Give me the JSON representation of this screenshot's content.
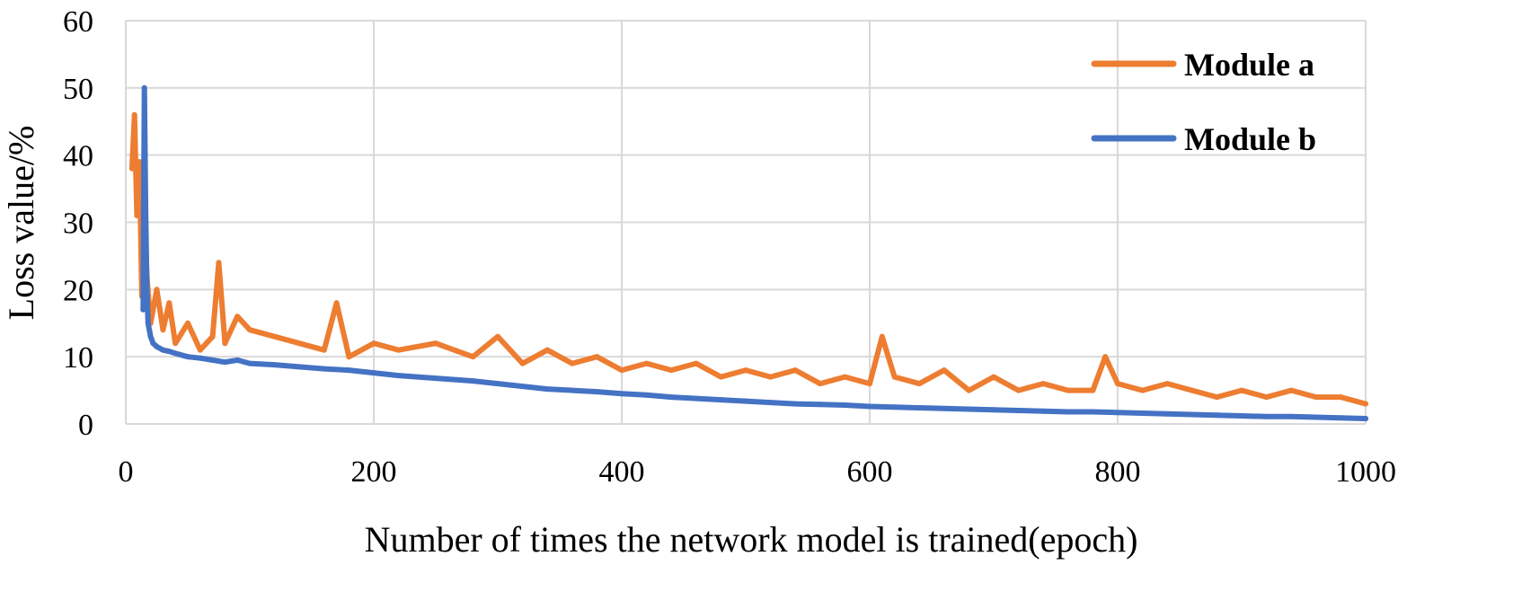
{
  "chart_data": {
    "type": "line",
    "xlabel": "Number of times the network model is trained(epoch)",
    "ylabel": "Loss value/%",
    "xlim": [
      0,
      1000
    ],
    "ylim": [
      0,
      60
    ],
    "x_ticks": [
      "0",
      "200",
      "400",
      "600",
      "800",
      "1000"
    ],
    "y_ticks": [
      "0",
      "10",
      "20",
      "30",
      "40",
      "50",
      "60"
    ],
    "grid": true,
    "legend_position": "top-right",
    "colors": {
      "module_a": "#ED7D31",
      "module_b": "#4472C4",
      "grid": "#D9D9D9"
    },
    "series": [
      {
        "name": "Module a",
        "x": [
          5,
          7,
          9,
          11,
          13,
          15,
          17,
          20,
          25,
          30,
          35,
          40,
          50,
          60,
          70,
          75,
          80,
          90,
          100,
          120,
          140,
          160,
          170,
          180,
          200,
          220,
          250,
          280,
          300,
          320,
          340,
          360,
          380,
          400,
          420,
          440,
          460,
          480,
          500,
          520,
          540,
          560,
          580,
          600,
          610,
          620,
          640,
          660,
          680,
          700,
          720,
          740,
          760,
          780,
          790,
          800,
          820,
          840,
          860,
          880,
          900,
          920,
          940,
          960,
          980,
          1000
        ],
        "values": [
          38,
          46,
          31,
          39,
          19,
          31,
          22,
          15,
          20,
          14,
          18,
          12,
          15,
          11,
          13,
          24,
          12,
          16,
          14,
          13,
          12,
          11,
          18,
          10,
          12,
          11,
          12,
          10,
          13,
          9,
          11,
          9,
          10,
          8,
          9,
          8,
          9,
          7,
          8,
          7,
          8,
          6,
          7,
          6,
          13,
          7,
          6,
          8,
          5,
          7,
          5,
          6,
          5,
          5,
          10,
          6,
          5,
          6,
          5,
          4,
          5,
          4,
          5,
          4,
          4,
          3
        ]
      },
      {
        "name": "Module b",
        "x": [
          14,
          15,
          16,
          17,
          18,
          19,
          20,
          22,
          25,
          30,
          35,
          40,
          50,
          60,
          70,
          80,
          90,
          100,
          120,
          140,
          160,
          180,
          200,
          220,
          250,
          280,
          300,
          320,
          340,
          360,
          380,
          400,
          420,
          440,
          460,
          480,
          500,
          520,
          540,
          560,
          580,
          600,
          620,
          640,
          660,
          680,
          700,
          720,
          740,
          760,
          780,
          800,
          820,
          840,
          860,
          880,
          900,
          920,
          940,
          960,
          980,
          1000
        ],
        "values": [
          17,
          50,
          32,
          20,
          15,
          14,
          13,
          12,
          11.5,
          11,
          10.8,
          10.5,
          10,
          9.8,
          9.5,
          9.2,
          9.5,
          9,
          8.8,
          8.5,
          8.2,
          8,
          7.6,
          7.2,
          6.8,
          6.4,
          6,
          5.6,
          5.2,
          5,
          4.8,
          4.5,
          4.3,
          4,
          3.8,
          3.6,
          3.4,
          3.2,
          3,
          2.9,
          2.8,
          2.6,
          2.5,
          2.4,
          2.3,
          2.2,
          2.1,
          2,
          1.9,
          1.8,
          1.8,
          1.7,
          1.6,
          1.5,
          1.4,
          1.3,
          1.2,
          1.1,
          1.1,
          1.0,
          0.9,
          0.8
        ]
      }
    ]
  }
}
